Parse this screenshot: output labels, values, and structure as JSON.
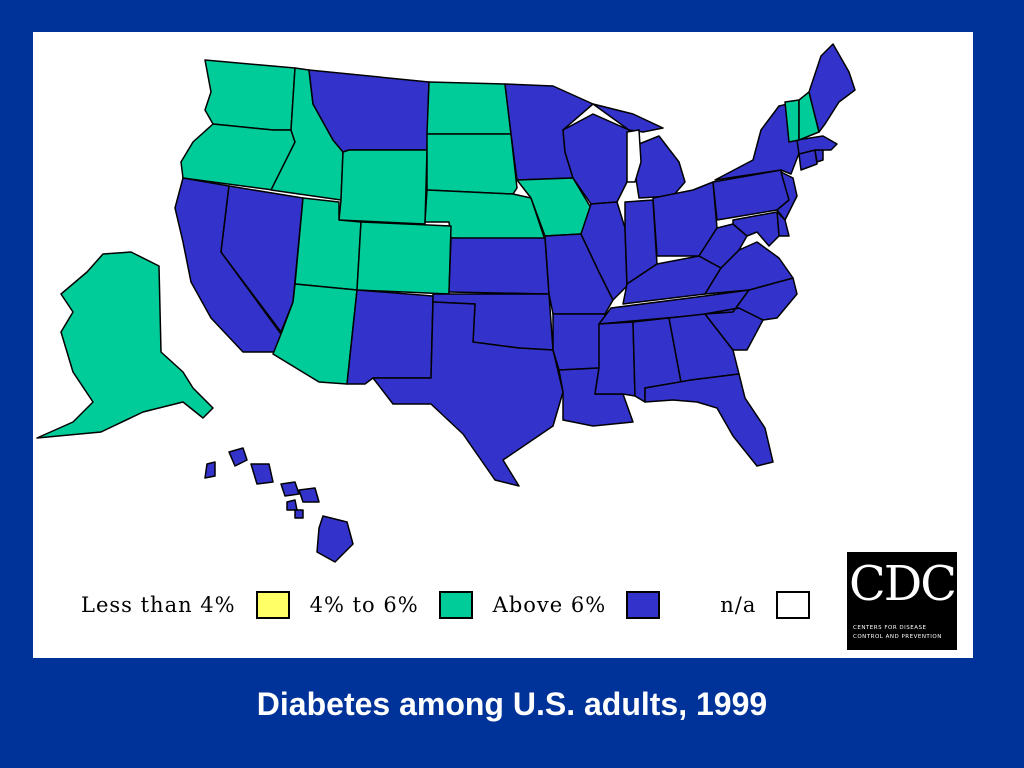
{
  "caption": "Diabetes among U.S. adults, 1999",
  "colors": {
    "background": "#003399",
    "panel": "#ffffff",
    "less_than_4": "#ffff66",
    "four_to_six": "#00cc99",
    "above_6": "#3333cc",
    "na": "#ffffff"
  },
  "legend": {
    "items": [
      {
        "label": "Less than 4%",
        "category": "less_than_4"
      },
      {
        "label": "4% to 6%",
        "category": "four_to_six"
      },
      {
        "label": "Above 6%",
        "category": "above_6"
      },
      {
        "label": "n/a",
        "category": "na"
      }
    ]
  },
  "logo": {
    "text": "CDC",
    "subtitle": "CENTERS FOR DISEASE CONTROL AND PREVENTION"
  },
  "states": {
    "WA": "four_to_six",
    "OR": "four_to_six",
    "ID": "four_to_six",
    "MT": "above_6",
    "WY": "four_to_six",
    "ND": "four_to_six",
    "SD": "four_to_six",
    "NE": "four_to_six",
    "MN": "above_6",
    "IA": "four_to_six",
    "WI": "above_6",
    "MI": "above_6",
    "CA": "above_6",
    "NV": "above_6",
    "UT": "four_to_six",
    "CO": "four_to_six",
    "AZ": "four_to_six",
    "NM": "above_6",
    "KS": "above_6",
    "OK": "above_6",
    "TX": "above_6",
    "MO": "above_6",
    "AR": "above_6",
    "LA": "above_6",
    "IL": "above_6",
    "IN": "above_6",
    "OH": "above_6",
    "KY": "above_6",
    "TN": "above_6",
    "MS": "above_6",
    "AL": "above_6",
    "GA": "above_6",
    "FL": "above_6",
    "SC": "above_6",
    "NC": "above_6",
    "VA": "above_6",
    "WV": "above_6",
    "PA": "above_6",
    "NY": "above_6",
    "NJ": "above_6",
    "DE": "above_6",
    "MD": "above_6",
    "CT": "above_6",
    "RI": "above_6",
    "MA": "above_6",
    "VT": "four_to_six",
    "NH": "four_to_six",
    "ME": "above_6",
    "AK": "four_to_six",
    "HI": "above_6"
  }
}
